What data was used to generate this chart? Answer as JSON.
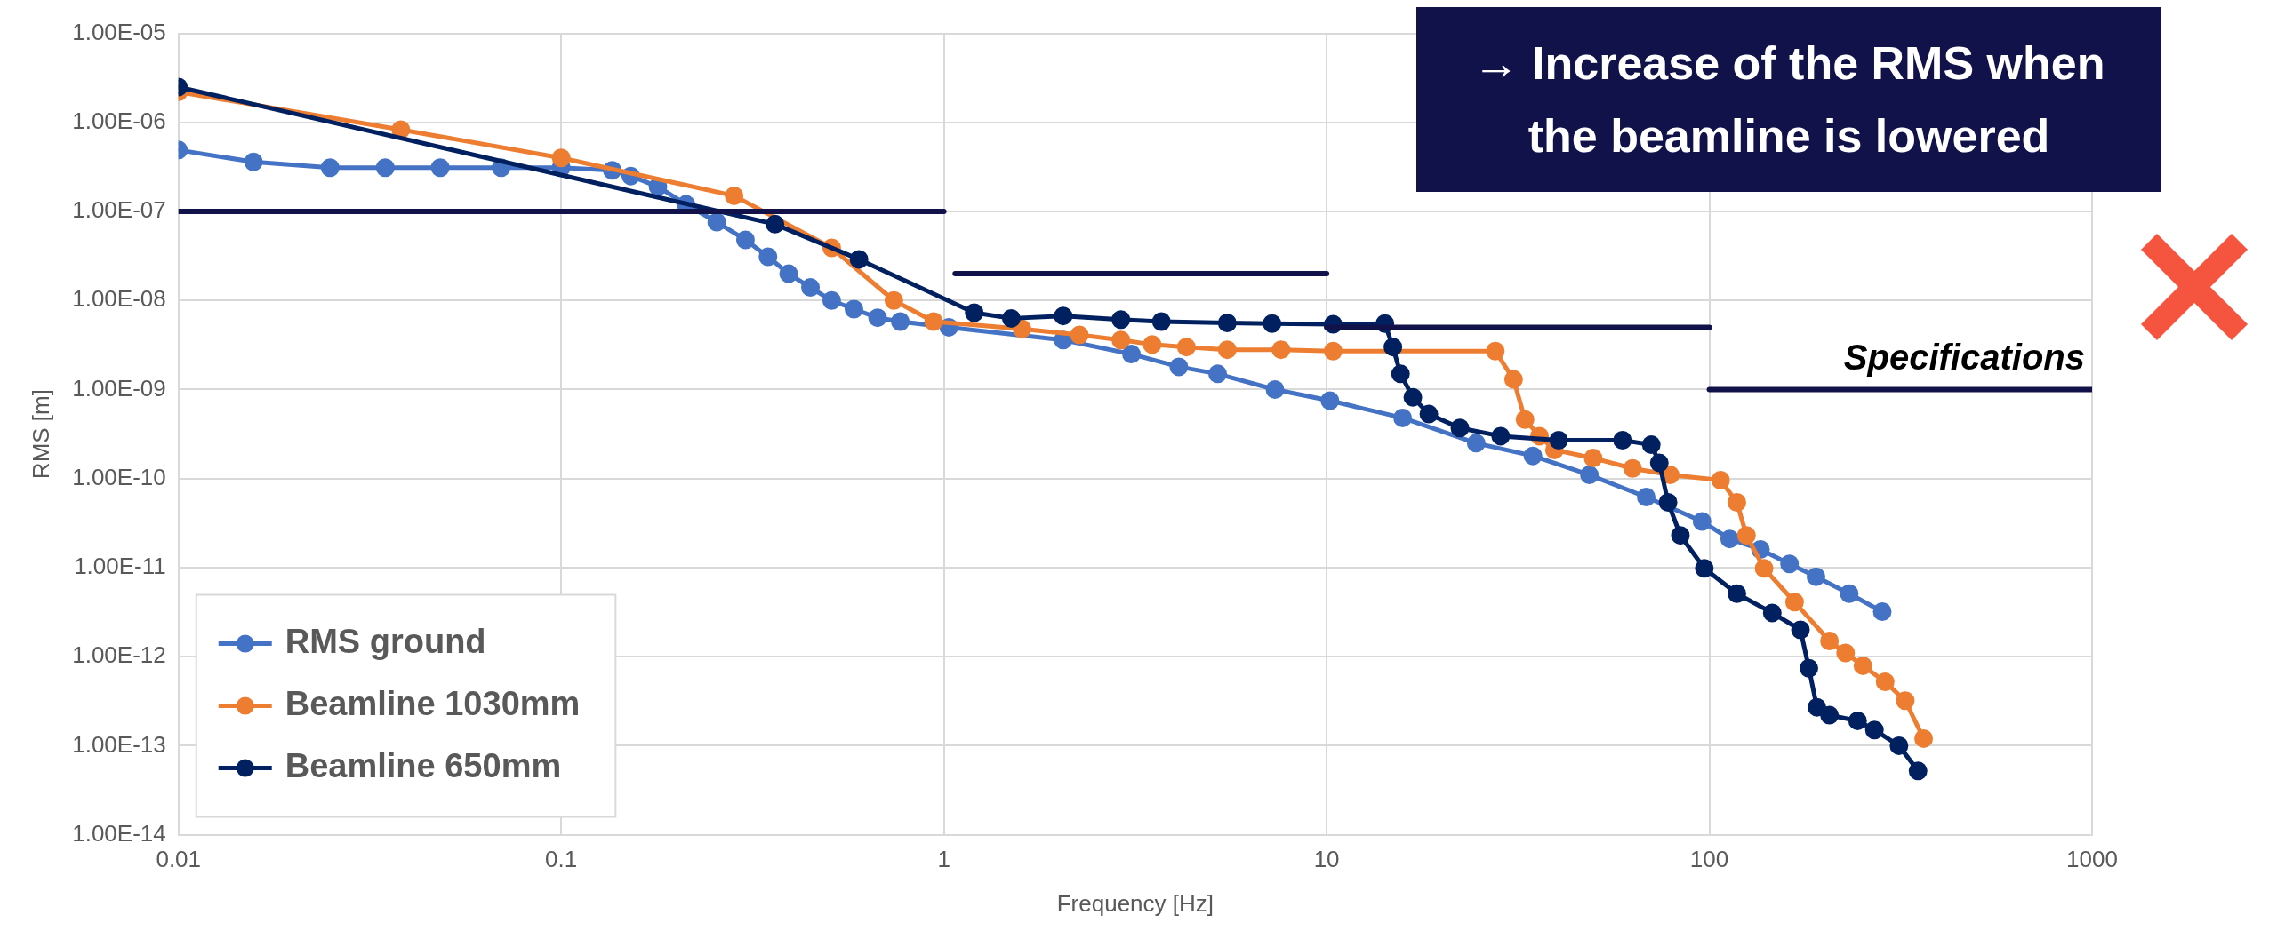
{
  "chart_data": {
    "type": "line",
    "xlabel": "Frequency [Hz]",
    "ylabel": "RMS [m]",
    "log": "xy",
    "grid": true,
    "legend": "bottom left",
    "marker": "circle",
    "line_style": "solid",
    "xlim": [
      0.01,
      1000
    ],
    "xticks": [
      0.01,
      0.1,
      1,
      10,
      100,
      1000
    ],
    "ylim": [
      1e-14,
      1e-05
    ],
    "yticks": [
      {
        "value": 1e-14,
        "label": "1.00E-14"
      },
      {
        "value": 1e-13,
        "label": "1.00E-13"
      },
      {
        "value": 1e-12,
        "label": "1.00E-12"
      },
      {
        "value": 1e-11,
        "label": "1.00E-11"
      },
      {
        "value": 1e-10,
        "label": "1.00E-10"
      },
      {
        "value": 1e-09,
        "label": "1.00E-09"
      },
      {
        "value": 1e-08,
        "label": "1.00E-08"
      },
      {
        "value": 1e-07,
        "label": "1.00E-07"
      },
      {
        "value": 1e-06,
        "label": "1.00E-06"
      },
      {
        "value": 1e-05,
        "label": "1.00E-05"
      }
    ],
    "annotations": [
      "→ Increase of the RMS when the beamline is lowered"
    ],
    "series": [
      {
        "name": "RMS ground",
        "color": "#4472c4",
        "x": [
          0.01,
          0.0157,
          0.0249,
          0.0347,
          0.0483,
          0.0697,
          0.1,
          0.136,
          0.152,
          0.179,
          0.212,
          0.255,
          0.303,
          0.347,
          0.393,
          0.448,
          0.509,
          0.582,
          0.671,
          0.769,
          1.03,
          2.05,
          3.09,
          4.11,
          5.19,
          7.33,
          10.2,
          15.8,
          24.6,
          34.6,
          48.6,
          68.4,
          95.7,
          113,
          136,
          162,
          190,
          232,
          283
        ],
        "values": [
          4.9e-07,
          3.6e-07,
          3.1e-07,
          3.1e-07,
          3.1e-07,
          3.1e-07,
          3.1e-07,
          2.9e-07,
          2.5e-07,
          1.9e-07,
          1.2e-07,
          7.6e-08,
          4.8e-08,
          3.1e-08,
          2e-08,
          1.4e-08,
          1e-08,
          8e-09,
          6.4e-09,
          5.8e-09,
          5e-09,
          3.6e-09,
          2.5e-09,
          1.8e-09,
          1.5e-09,
          1e-09,
          7.5e-10,
          4.8e-10,
          2.5e-10,
          1.8e-10,
          1.1e-10,
          6.2e-11,
          3.3e-11,
          2.1e-11,
          1.6e-11,
          1.1e-11,
          7.9e-12,
          5.1e-12,
          3.2e-12
        ]
      },
      {
        "name": "Beamline 1030mm",
        "color": "#ed7d31",
        "x": [
          0.01,
          0.0381,
          0.1,
          0.283,
          0.509,
          0.74,
          0.94,
          1.6,
          2.26,
          2.9,
          3.5,
          4.3,
          5.5,
          7.6,
          10.4,
          27.6,
          30.8,
          33,
          36,
          39.4,
          49.7,
          63,
          79,
          107,
          118,
          125,
          139,
          167,
          206,
          227,
          252,
          288,
          325,
          363
        ],
        "values": [
          2.2e-06,
          8.3e-07,
          4e-07,
          1.5e-07,
          3.9e-08,
          1e-08,
          5.8e-09,
          4.8e-09,
          4.1e-09,
          3.6e-09,
          3.2e-09,
          3e-09,
          2.8e-09,
          2.8e-09,
          2.7e-09,
          2.7e-09,
          1.3e-09,
          4.6e-10,
          3e-10,
          2.1e-10,
          1.7e-10,
          1.3e-10,
          1.1e-10,
          9.6e-11,
          5.4e-11,
          2.3e-11,
          9.8e-12,
          4.1e-12,
          1.5e-12,
          1.1e-12,
          7.9e-13,
          5.2e-13,
          3.2e-13,
          1.2e-13
        ]
      },
      {
        "name": "Beamline 650mm",
        "color": "#002060",
        "x": [
          0.01,
          0.362,
          0.6,
          1.2,
          1.5,
          2.05,
          2.9,
          3.7,
          5.5,
          7.2,
          10.4,
          14.2,
          14.9,
          15.6,
          16.8,
          18.5,
          22.3,
          28.5,
          40.4,
          59.3,
          70.5,
          74,
          78,
          84,
          97,
          118,
          146,
          173,
          182,
          191,
          206,
          244,
          270,
          313,
          351
        ],
        "values": [
          2.5e-06,
          7.2e-08,
          2.9e-08,
          7.3e-09,
          6.3e-09,
          6.7e-09,
          6.1e-09,
          5.8e-09,
          5.6e-09,
          5.5e-09,
          5.4e-09,
          5.5e-09,
          3e-09,
          1.5e-09,
          8.2e-10,
          5.3e-10,
          3.7e-10,
          3e-10,
          2.7e-10,
          2.7e-10,
          2.4e-10,
          1.5e-10,
          5.4e-11,
          2.3e-11,
          9.8e-12,
          5.1e-12,
          3.1e-12,
          2e-12,
          7.4e-13,
          2.7e-13,
          2.2e-13,
          1.9e-13,
          1.5e-13,
          1e-13,
          5.2e-14
        ]
      },
      {
        "color": "#12124a",
        "type": "line",
        "marker": "none",
        "x": [
          0.01,
          1
        ],
        "values": [
          1e-07,
          1e-07
        ]
      },
      {
        "color": "#12124a",
        "type": "line",
        "marker": "none",
        "x": [
          1.07,
          10
        ],
        "values": [
          2e-08,
          2e-08
        ]
      },
      {
        "color": "#12124a",
        "type": "line",
        "marker": "none",
        "x": [
          10,
          100
        ],
        "values": [
          5e-09,
          5e-09
        ]
      },
      {
        "name": "Specifications",
        "color": "#12124a",
        "type": "line",
        "marker": "none",
        "x": [
          100,
          1000
        ],
        "values": [
          1e-09,
          1e-09
        ]
      }
    ]
  }
}
